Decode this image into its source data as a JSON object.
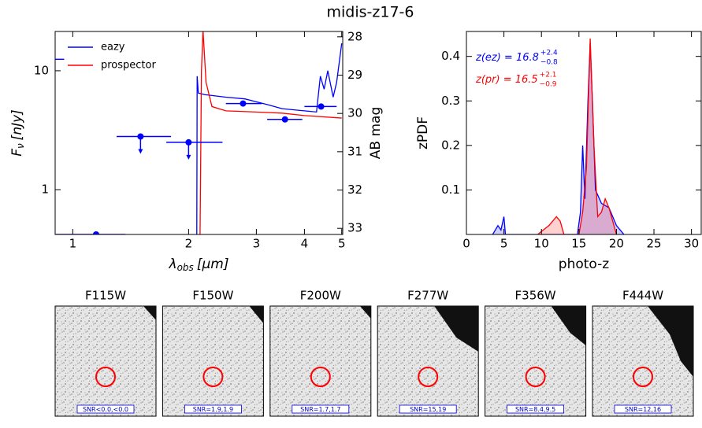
{
  "title": "midis-z17-6",
  "chart_data": [
    {
      "type": "line",
      "xlog": true,
      "ylog": true,
      "xlabel": {
        "symbol": "λ",
        "sub": "obs",
        "unit": "[μm]"
      },
      "ylabel": {
        "symbol": "F",
        "sub": "ν",
        "unit": "[nJy]"
      },
      "y2label": "AB mag",
      "xlim": [
        0.9,
        5.03
      ],
      "xticks": [
        1,
        2,
        3,
        4,
        5
      ],
      "ylim": [
        0.42,
        21.4
      ],
      "yticks": [
        1,
        10
      ],
      "y2lim": [
        33.16,
        27.86
      ],
      "y2ticks": [
        28,
        29,
        30,
        31,
        32,
        33
      ],
      "legend": "upper left",
      "series": [
        {
          "name": "eazy",
          "color": "#0000ff",
          "x": [
            0.9,
            0.95,
            null,
            2.1,
            2.105,
            2.12,
            2.2,
            2.5,
            2.8,
            3.2,
            3.5,
            4.0,
            4.3,
            4.4,
            4.5,
            4.6,
            4.75,
            4.85,
            5.0
          ],
          "values": [
            12.5,
            12.5,
            null,
            0.3,
            9,
            6.5,
            6.3,
            6,
            5.8,
            5.2,
            4.8,
            4.6,
            4.5,
            9,
            7,
            10,
            6,
            8,
            17
          ]
        },
        {
          "name": "prospector",
          "color": "#ff0000",
          "x": [
            2.14,
            2.16,
            2.18,
            2.22,
            2.3,
            2.5,
            3.0,
            3.5,
            4.0,
            5.0
          ],
          "values": [
            0.3,
            10,
            22,
            8,
            5,
            4.6,
            4.5,
            4.4,
            4.2,
            4.0
          ]
        }
      ],
      "points": {
        "color": "#0000ff",
        "x": [
          1.15,
          1.5,
          2.0,
          2.77,
          3.56,
          4.42
        ],
        "x_low": [
          0.9,
          1.3,
          1.75,
          2.5,
          3.2,
          4.0
        ],
        "x_high": [
          1.37,
          1.8,
          2.45,
          3.1,
          3.95,
          4.85
        ],
        "values": [
          0.42,
          2.8,
          2.5,
          5.3,
          3.9,
          5.0
        ],
        "upper_limit": [
          true,
          true,
          true,
          false,
          false,
          false
        ]
      }
    },
    {
      "type": "line",
      "xlog": false,
      "ylog": false,
      "xlabel": "photo-z",
      "ylabel": "zPDF",
      "xlim": [
        0,
        31.3
      ],
      "xticks": [
        0,
        5,
        10,
        15,
        20,
        25,
        30
      ],
      "ylim": [
        0,
        0.456
      ],
      "yticks": [
        0.1,
        0.2,
        0.3,
        0.4
      ],
      "series": [
        {
          "color": "#0000ff",
          "fill": true,
          "x": [
            3.5,
            4.2,
            4.6,
            5,
            5.2,
            14.8,
            15.2,
            15.5,
            15.8,
            16.2,
            16.5,
            16.8,
            17.2,
            18,
            19,
            19.5,
            20,
            21
          ],
          "values": [
            0,
            0.02,
            0.01,
            0.04,
            0,
            0,
            0.05,
            0.2,
            0.08,
            0.3,
            0.43,
            0.3,
            0.1,
            0.07,
            0.06,
            0.04,
            0.02,
            0
          ]
        },
        {
          "color": "#ff0000",
          "fill": true,
          "x": [
            9.5,
            11,
            12,
            12.5,
            13,
            15,
            15.5,
            16,
            16.5,
            17,
            17.5,
            18,
            18.5,
            19,
            19.5,
            20
          ],
          "values": [
            0,
            0.02,
            0.04,
            0.03,
            0,
            0,
            0.05,
            0.15,
            0.44,
            0.2,
            0.04,
            0.05,
            0.08,
            0.06,
            0.03,
            0
          ]
        }
      ],
      "annotations": [
        {
          "text": "z(ez) = 16.8",
          "upper": "+2.4",
          "lower": "−0.8",
          "color": "#0000ff"
        },
        {
          "text": "z(pr) = 16.5",
          "upper": "+2.1",
          "lower": "−0.9",
          "color": "#ff0000"
        }
      ]
    }
  ],
  "panels": [
    {
      "band": "F115W",
      "snr": "SNR<0.0,<0.0"
    },
    {
      "band": "F150W",
      "snr": "SNR=1.9,1.9"
    },
    {
      "band": "F200W",
      "snr": "SNR=1.7,1.7"
    },
    {
      "band": "F277W",
      "snr": "SNR=15,19"
    },
    {
      "band": "F356W",
      "snr": "SNR=8.4,9.5"
    },
    {
      "band": "F444W",
      "snr": "SNR=12,16"
    }
  ]
}
